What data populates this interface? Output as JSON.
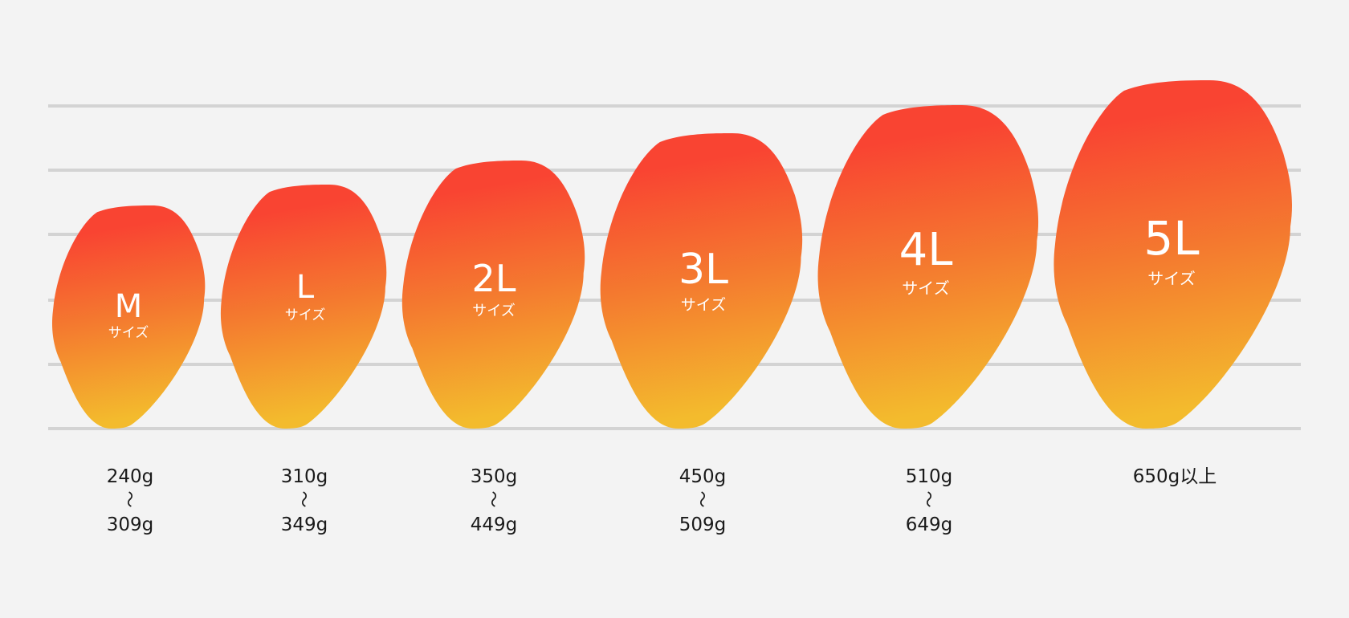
{
  "sizes": [
    {
      "label": "M",
      "sub": "サイズ",
      "weight_min": "240g",
      "range_mark": "〜",
      "weight_max": "309g"
    },
    {
      "label": "L",
      "sub": "サイズ",
      "weight_min": "310g",
      "range_mark": "〜",
      "weight_max": "349g"
    },
    {
      "label": "2L",
      "sub": "サイズ",
      "weight_min": "350g",
      "range_mark": "〜",
      "weight_max": "449g"
    },
    {
      "label": "3L",
      "sub": "サイズ",
      "weight_min": "450g",
      "range_mark": "〜",
      "weight_max": "509g"
    },
    {
      "label": "4L",
      "sub": "サイズ",
      "weight_min": "510g",
      "range_mark": "〜",
      "weight_max": "649g"
    },
    {
      "label": "5L",
      "sub": "サイズ",
      "weight_min": "650g以上",
      "range_mark": "",
      "weight_max": ""
    }
  ],
  "colors": {
    "background": "#f3f3f3",
    "grid_line": "#d3d3d3",
    "mango_top": "#f94432",
    "mango_mid": "#f47a2f",
    "mango_bottom": "#f3bb2d",
    "text_dark": "#1a1a1a",
    "text_light": "#ffffff"
  }
}
